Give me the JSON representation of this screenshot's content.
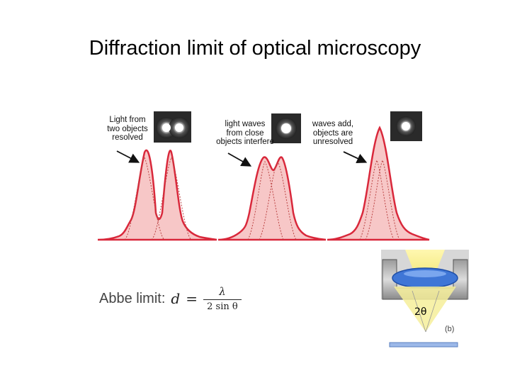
{
  "title": "Diffraction limit of optical microscopy",
  "captions": [
    {
      "label": "Light from two objects resolved",
      "lines": [
        "Light from",
        "two objects",
        "resolved"
      ]
    },
    {
      "label": "light waves from close objects interfere",
      "lines": [
        "light waves",
        "from close",
        "objects interfere"
      ]
    },
    {
      "label": "waves add, objects are unresolved",
      "lines": [
        "waves add,",
        "objects are",
        "unresolved"
      ]
    }
  ],
  "abbe": {
    "label": "Abbe limit:",
    "variable": "d",
    "equals": "=",
    "numerator": "λ",
    "denominator": "2 sin θ"
  },
  "lens": {
    "angle_label": "2θ",
    "panel_label": "(b)"
  },
  "colors": {
    "peak_fill": "#f7c7c7",
    "peak_stroke": "#d9283b",
    "lens_blue": "#3f76d6",
    "cone_yellow": "#f6ef9a"
  }
}
